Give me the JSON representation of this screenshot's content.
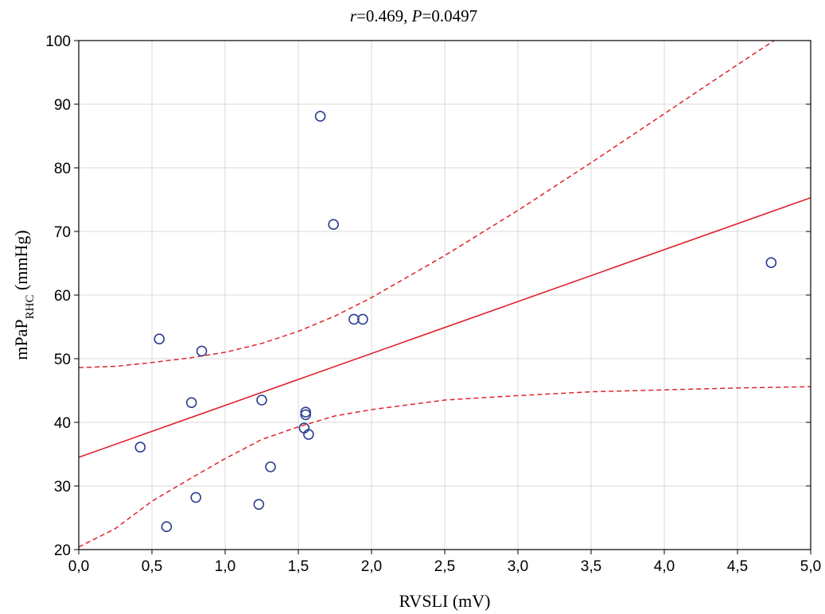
{
  "chart_data": {
    "type": "scatter",
    "title_parts": {
      "r_sym": "r",
      "r_val": "=0.469, ",
      "p_sym": "P",
      "p_val": "=0.0497"
    },
    "xlabel": "RVSLI (mV)",
    "ylabel_main": "mPaP",
    "ylabel_sub": "RHC",
    "ylabel_unit": " (mmHg)",
    "xlim": [
      0,
      5
    ],
    "ylim": [
      20,
      100
    ],
    "xticks": [
      0,
      0.5,
      1,
      1.5,
      2,
      2.5,
      3,
      3.5,
      4,
      4.5,
      5
    ],
    "xtick_labels": [
      "0,0",
      "0,5",
      "1,0",
      "1,5",
      "2,0",
      "2,5",
      "3,0",
      "3,5",
      "4,0",
      "4,5",
      "5,0"
    ],
    "yticks": [
      20,
      30,
      40,
      50,
      60,
      70,
      80,
      90,
      100
    ],
    "ytick_labels": [
      "20",
      "30",
      "40",
      "50",
      "60",
      "70",
      "80",
      "90",
      "100"
    ],
    "grid": true,
    "points": [
      {
        "x": 0.42,
        "y": 36.1
      },
      {
        "x": 0.55,
        "y": 53.1
      },
      {
        "x": 0.6,
        "y": 23.6
      },
      {
        "x": 0.77,
        "y": 43.1
      },
      {
        "x": 0.8,
        "y": 28.2
      },
      {
        "x": 0.84,
        "y": 51.2
      },
      {
        "x": 1.23,
        "y": 27.1
      },
      {
        "x": 1.25,
        "y": 43.5
      },
      {
        "x": 1.31,
        "y": 33.0
      },
      {
        "x": 1.54,
        "y": 39.1
      },
      {
        "x": 1.55,
        "y": 41.2
      },
      {
        "x": 1.55,
        "y": 41.6
      },
      {
        "x": 1.57,
        "y": 38.1
      },
      {
        "x": 1.65,
        "y": 88.1
      },
      {
        "x": 1.74,
        "y": 71.1
      },
      {
        "x": 1.88,
        "y": 56.2
      },
      {
        "x": 1.94,
        "y": 56.2
      },
      {
        "x": 4.73,
        "y": 65.1
      }
    ],
    "regression_line": {
      "x": [
        0,
        5
      ],
      "y": [
        34.5,
        75.3
      ]
    },
    "ci_upper": {
      "x": [
        0,
        0.25,
        0.5,
        0.75,
        1.0,
        1.25,
        1.5,
        1.75,
        2.0,
        2.5,
        3.0,
        3.5,
        4.0,
        4.5,
        4.75
      ],
      "y": [
        48.6,
        48.8,
        49.4,
        50.1,
        51.0,
        52.4,
        54.3,
        56.7,
        59.6,
        66.2,
        73.3,
        80.8,
        88.5,
        96.2,
        100
      ]
    },
    "ci_lower": {
      "x": [
        0,
        0.25,
        0.5,
        0.75,
        1.0,
        1.25,
        1.5,
        1.75,
        2.0,
        2.5,
        3.0,
        3.5,
        4.0,
        4.5,
        5.0
      ],
      "y": [
        20.4,
        23.3,
        27.6,
        31.0,
        34.3,
        37.3,
        39.3,
        41.0,
        42.0,
        43.5,
        44.2,
        44.8,
        45.1,
        45.4,
        45.6
      ]
    },
    "colors": {
      "points": "#2b3f8f",
      "line": "#e0222a",
      "grid": "#d9d9d9",
      "axis": "#000000"
    }
  }
}
